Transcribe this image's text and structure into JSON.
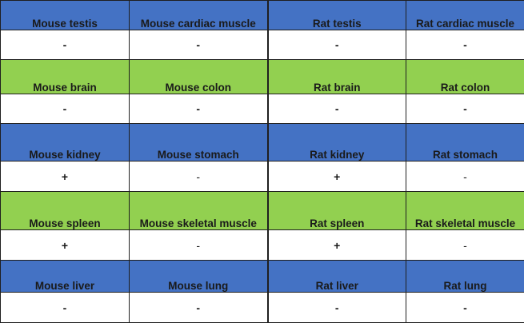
{
  "colors": {
    "blue": "#4472c4",
    "green": "#92d050"
  },
  "rows": [
    {
      "color": "#4472c4",
      "headers": [
        "Mouse testis",
        "Mouse cardiac muscle",
        "Rat testis",
        "Rat cardiac muscle"
      ],
      "values": [
        "-",
        "-",
        "-",
        "-"
      ],
      "bold_values": true
    },
    {
      "color": "#92d050",
      "headers": [
        "Mouse brain",
        "Mouse colon",
        "Rat brain",
        "Rat colon"
      ],
      "values": [
        "-",
        "-",
        "-",
        "-"
      ],
      "bold_values": true
    },
    {
      "color": "#4472c4",
      "headers": [
        "Mouse kidney",
        "Mouse stomach",
        "Rat kidney",
        "Rat stomach"
      ],
      "values": [
        "+",
        "-",
        "+",
        "-"
      ],
      "bold_values": false
    },
    {
      "color": "#92d050",
      "headers": [
        "Mouse spleen",
        "Mouse skeletal muscle",
        "Rat spleen",
        "Rat skeletal muscle"
      ],
      "values": [
        "+",
        "-",
        "+",
        "-"
      ],
      "bold_values": false
    },
    {
      "color": "#4472c4",
      "headers": [
        "Mouse liver",
        "Mouse lung",
        "Rat liver",
        "Rat lung"
      ],
      "values": [
        "-",
        "-",
        "-",
        "-"
      ],
      "bold_values": true
    }
  ]
}
